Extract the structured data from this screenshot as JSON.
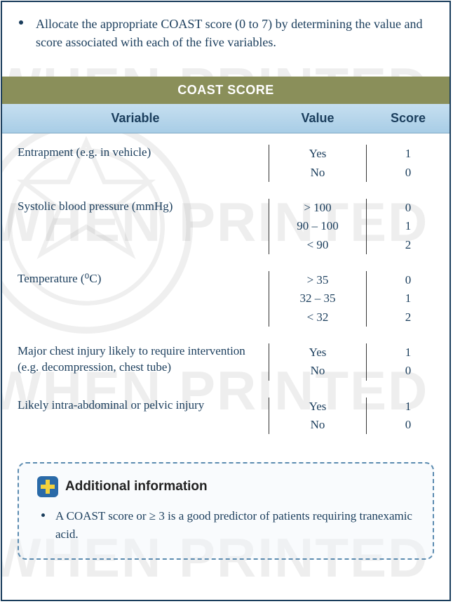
{
  "intro_text": "Allocate the appropriate COAST score (0 to 7) by determining the value and score associated with each of the five variables.",
  "watermark_text": "WHEN PRINTED",
  "table": {
    "title": "COAST SCORE",
    "title_bg": "#8a8f5a",
    "title_color": "#ffffff",
    "header_bg_top": "#c6dff0",
    "header_bg_bottom": "#a8cde6",
    "text_color": "#1a3d5c",
    "columns": [
      "Variable",
      "Value",
      "Score"
    ],
    "rows": [
      {
        "variable": "Entrapment (e.g. in vehicle)",
        "values": [
          "Yes",
          "No"
        ],
        "scores": [
          "1",
          "0"
        ]
      },
      {
        "variable": "Systolic blood pressure (mmHg)",
        "values": [
          "> 100",
          "90 – 100",
          "< 90"
        ],
        "scores": [
          "0",
          "1",
          "2"
        ]
      },
      {
        "variable": "Temperature (⁰C)",
        "values": [
          "> 35",
          "32 – 35",
          "< 32"
        ],
        "scores": [
          "0",
          "1",
          "2"
        ]
      },
      {
        "variable": "Major chest injury likely to require intervention (e.g. decompression, chest tube)",
        "values": [
          "Yes",
          "No"
        ],
        "scores": [
          "1",
          "0"
        ]
      },
      {
        "variable": "Likely intra-abdominal or pelvic injury",
        "values": [
          "Yes",
          "No"
        ],
        "scores": [
          "1",
          "0"
        ]
      }
    ]
  },
  "info_box": {
    "title": "Additional information",
    "border_color": "#5b8bb0",
    "icon_bg": "#2a6aa8",
    "icon_fg": "#f3d13c",
    "items": [
      "A COAST score or ≥ 3 is a good predictor of patients requiring tranexamic acid."
    ]
  }
}
